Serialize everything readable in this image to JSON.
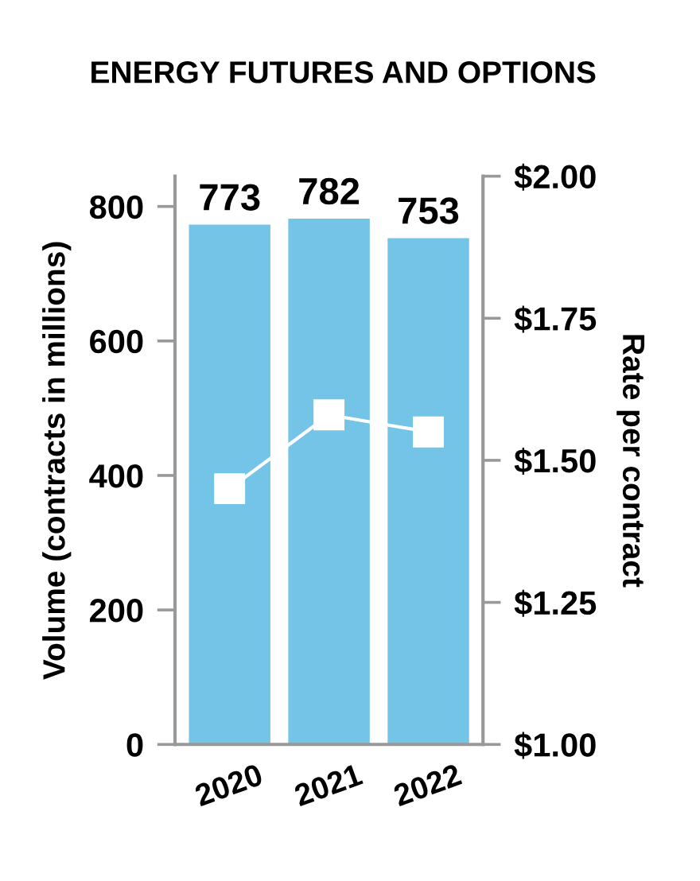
{
  "chart_data": {
    "type": "bar",
    "title": "ENERGY FUTURES AND OPTIONS",
    "categories": [
      "2020",
      "2021",
      "2022"
    ],
    "series": [
      {
        "color": "#73c4e7",
        "values": [
          773,
          782,
          753
        ],
        "value_labels": [
          "773",
          "782",
          "753"
        ]
      },
      {
        "type": "line",
        "axis": "y2",
        "color": "#ffffff",
        "values": [
          1.45,
          1.58,
          1.55
        ],
        "marker": "square"
      }
    ],
    "ylabel": "Volume (contracts in millions)",
    "y2label": "Rate per contract",
    "ylim": [
      0,
      845
    ],
    "yticks": [
      0,
      200,
      400,
      600,
      800
    ],
    "y2lim": [
      1.0,
      2.0
    ],
    "y2ticks": [
      {
        "value": 1.0,
        "label": "$1.00"
      },
      {
        "value": 1.25,
        "label": "$1.25"
      },
      {
        "value": 1.5,
        "label": "$1.50"
      },
      {
        "value": 1.75,
        "label": "$1.75"
      },
      {
        "value": 2.0,
        "label": "$2.00"
      }
    ],
    "grid": false
  }
}
